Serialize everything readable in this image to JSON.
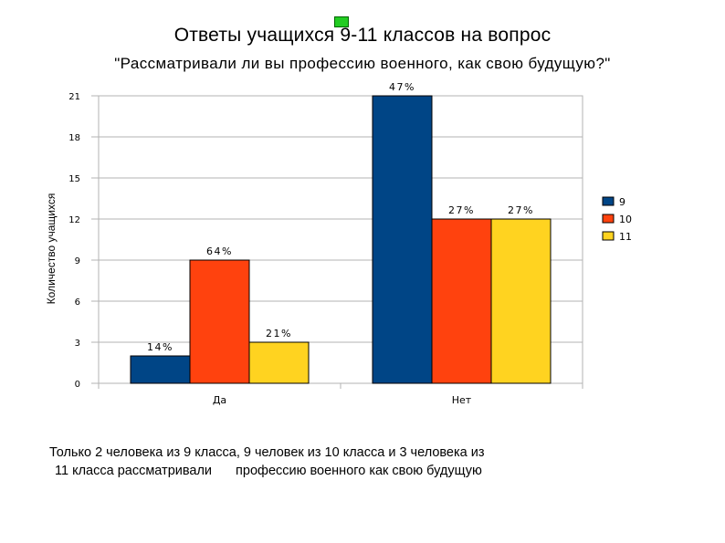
{
  "title_line1": "Ответы учащихся 9-11 классов на вопрос",
  "title_line2": "\"Рассматривали ли вы профессию военного, как свою будущую?\"",
  "caption_line1": "Только  2 человека из 9  класса, 9 человек из 10 класса и 3 человека из",
  "caption_line2a": "11 класса рассматривали",
  "caption_line2b": "профессию военного  как свою будущую",
  "colors": {
    "s9": "#004586",
    "s10": "#ff420e",
    "s11": "#ffd320",
    "grid": "#b3b3b3"
  },
  "chart_data": {
    "type": "bar",
    "categories": [
      "Да",
      "Нет"
    ],
    "series": [
      {
        "name": "9",
        "values": [
          2,
          21
        ],
        "labels": [
          "14%",
          "47%"
        ]
      },
      {
        "name": "10",
        "values": [
          9,
          12
        ],
        "labels": [
          "64%",
          "27%"
        ]
      },
      {
        "name": "11",
        "values": [
          3,
          12
        ],
        "labels": [
          "21%",
          "27%"
        ]
      }
    ],
    "ylabel": "Количество учащихся",
    "ylim": [
      0,
      21
    ],
    "yticks": [
      0,
      3,
      6,
      9,
      12,
      15,
      18,
      21
    ],
    "grid": true,
    "legend": "right"
  }
}
